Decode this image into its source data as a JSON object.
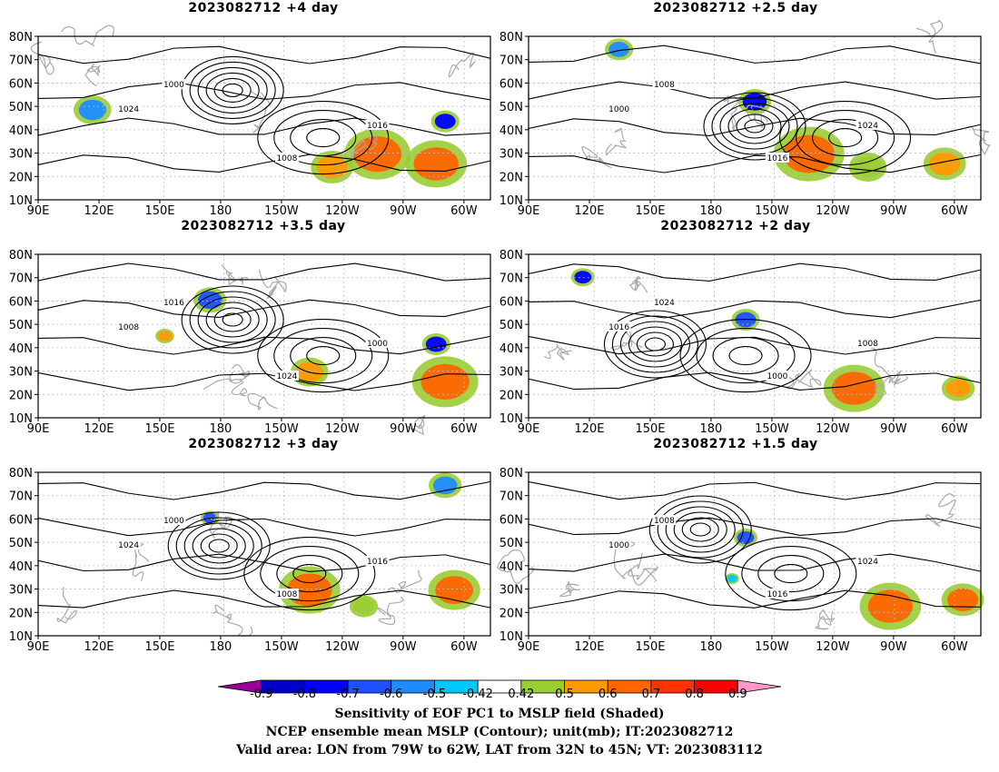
{
  "panels": [
    {
      "title": "2023082712  +4 day"
    },
    {
      "title": "2023082712  +2.5 day"
    },
    {
      "title": "2023082712  +3.5 day"
    },
    {
      "title": "2023082712  +2 day"
    },
    {
      "title": "2023082712  +3 day"
    },
    {
      "title": "2023082712  +1.5 day"
    }
  ],
  "lat_labels": [
    "80N",
    "70N",
    "60N",
    "50N",
    "40N",
    "30N",
    "20N",
    "10N"
  ],
  "lon_labels": [
    "90E",
    "120E",
    "150E",
    "180",
    "150W",
    "120W",
    "90W",
    "60W"
  ],
  "contour_labels": [
    "1000",
    "1008",
    "1016",
    "1024"
  ],
  "colorbar": {
    "ticks": [
      "-0.9",
      "-0.8",
      "-0.7",
      "-0.6",
      "-0.5",
      "-0.42",
      "0.42",
      "0.5",
      "0.6",
      "0.7",
      "0.8",
      "0.9"
    ],
    "colors": [
      "#9b009b",
      "#0000c8",
      "#0000ff",
      "#1e50ff",
      "#1e8cff",
      "#00c8ff",
      "#ffffff",
      "#9acd32",
      "#ff9900",
      "#ff6600",
      "#ff3300",
      "#ff0000",
      "#ff99cc"
    ]
  },
  "caption": {
    "line1": "Sensitivity of EOF PC1 to MSLP field (Shaded)",
    "line2": "NCEP ensemble mean MSLP (Contour); unit(mb); IT:2023082712",
    "line3": "Valid area: LON from 79W to 62W, LAT from 32N to 45N; VT: 2023083112"
  }
}
